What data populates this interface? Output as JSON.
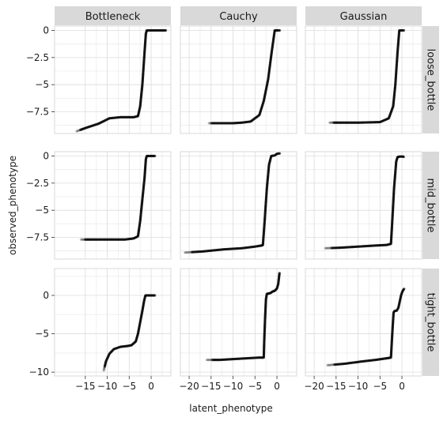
{
  "chart_data": {
    "type": "scatter",
    "title": "",
    "xlabel": "latent_phenotype",
    "ylabel": "observed_phenotype",
    "column_facets": [
      "Bottleneck",
      "Cauchy",
      "Gaussian"
    ],
    "row_facets": [
      "loose_bottle",
      "mid_bottle",
      "tight_bottle"
    ],
    "xlim": [
      -22,
      4.5
    ],
    "x_ticks": [
      -20,
      -15,
      -10,
      -5,
      0
    ],
    "x_tick_labels": [
      "−20",
      "−15",
      "−10",
      "−5",
      "0"
    ],
    "x_ticks_bottleneck": [
      -15,
      -10,
      -5,
      0
    ],
    "x_tick_labels_bottleneck": [
      "−15",
      "−10",
      "−5",
      "0"
    ],
    "y_ticks_top": [
      0,
      -2.5,
      -5,
      -7.5
    ],
    "y_tick_labels_top": [
      "0",
      "−2.5",
      "−5",
      "−7.5"
    ],
    "y_ticks_bottom": [
      0,
      -5,
      -10
    ],
    "y_tick_labels_bottom": [
      "0",
      "−5",
      "−10"
    ],
    "ylim_rows": [
      [
        -9.5,
        0.4
      ],
      [
        -9.5,
        0.4
      ],
      [
        -10.5,
        3.5
      ]
    ],
    "grid": true,
    "point_color": "#000000",
    "panels": [
      {
        "row": "loose_bottle",
        "col": "Bottleneck",
        "points": [
          [
            -17.0,
            -9.3
          ],
          [
            -15.0,
            -9.0
          ],
          [
            -12.0,
            -8.6
          ],
          [
            -9.5,
            -8.1
          ],
          [
            -7.0,
            -8.0
          ],
          [
            -4.0,
            -8.0
          ],
          [
            -3.0,
            -7.9
          ],
          [
            -2.5,
            -7.0
          ],
          [
            -2.0,
            -5.0
          ],
          [
            -1.5,
            -2.0
          ],
          [
            -1.2,
            -0.3
          ],
          [
            -1.0,
            0.0
          ],
          [
            0.0,
            0.0
          ],
          [
            2.0,
            0.0
          ],
          [
            3.5,
            0.0
          ]
        ]
      },
      {
        "row": "loose_bottle",
        "col": "Cauchy",
        "points": [
          [
            -15.5,
            -8.55
          ],
          [
            -14.0,
            -8.55
          ],
          [
            -10.0,
            -8.55
          ],
          [
            -8.0,
            -8.5
          ],
          [
            -6.0,
            -8.4
          ],
          [
            -4.0,
            -7.8
          ],
          [
            -3.0,
            -6.5
          ],
          [
            -2.0,
            -4.5
          ],
          [
            -1.2,
            -2.0
          ],
          [
            -0.5,
            0.0
          ],
          [
            0.0,
            0.0
          ],
          [
            0.8,
            0.0
          ]
        ]
      },
      {
        "row": "loose_bottle",
        "col": "Gaussian",
        "points": [
          [
            -16.5,
            -8.5
          ],
          [
            -14.5,
            -8.5
          ],
          [
            -10.0,
            -8.5
          ],
          [
            -5.0,
            -8.45
          ],
          [
            -3.0,
            -8.1
          ],
          [
            -2.0,
            -7.0
          ],
          [
            -1.5,
            -5.0
          ],
          [
            -1.0,
            -2.0
          ],
          [
            -0.6,
            0.0
          ],
          [
            0.0,
            0.0
          ],
          [
            0.6,
            0.0
          ]
        ]
      },
      {
        "row": "mid_bottle",
        "col": "Bottleneck",
        "points": [
          [
            -16.0,
            -7.7
          ],
          [
            -14.0,
            -7.7
          ],
          [
            -10.0,
            -7.7
          ],
          [
            -6.0,
            -7.7
          ],
          [
            -4.0,
            -7.6
          ],
          [
            -3.0,
            -7.4
          ],
          [
            -2.5,
            -6.0
          ],
          [
            -2.0,
            -4.0
          ],
          [
            -1.5,
            -2.0
          ],
          [
            -1.2,
            -0.3
          ],
          [
            -1.0,
            0.0
          ],
          [
            0.0,
            0.0
          ],
          [
            1.0,
            0.0
          ]
        ]
      },
      {
        "row": "mid_bottle",
        "col": "Cauchy",
        "points": [
          [
            -21.0,
            -8.9
          ],
          [
            -17.0,
            -8.8
          ],
          [
            -12.0,
            -8.6
          ],
          [
            -8.0,
            -8.5
          ],
          [
            -5.0,
            -8.35
          ],
          [
            -3.5,
            -8.25
          ],
          [
            -3.2,
            -8.2
          ],
          [
            -2.8,
            -6.0
          ],
          [
            -2.3,
            -3.0
          ],
          [
            -1.8,
            -0.8
          ],
          [
            -1.3,
            0.0
          ],
          [
            -0.5,
            0.05
          ],
          [
            0.0,
            0.2
          ],
          [
            0.8,
            0.25
          ]
        ]
      },
      {
        "row": "mid_bottle",
        "col": "Gaussian",
        "points": [
          [
            -17.5,
            -8.5
          ],
          [
            -14.0,
            -8.45
          ],
          [
            -10.0,
            -8.35
          ],
          [
            -6.0,
            -8.25
          ],
          [
            -3.5,
            -8.2
          ],
          [
            -2.5,
            -8.1
          ],
          [
            -2.2,
            -6.0
          ],
          [
            -1.8,
            -3.0
          ],
          [
            -1.3,
            -0.5
          ],
          [
            -1.0,
            -0.1
          ],
          [
            -0.5,
            -0.05
          ],
          [
            0.2,
            -0.05
          ],
          [
            0.5,
            -0.1
          ]
        ]
      },
      {
        "row": "tight_bottle",
        "col": "Bottleneck",
        "points": [
          [
            -10.8,
            -9.8
          ],
          [
            -10.3,
            -8.6
          ],
          [
            -9.5,
            -7.6
          ],
          [
            -8.5,
            -7.0
          ],
          [
            -7.0,
            -6.7
          ],
          [
            -5.5,
            -6.6
          ],
          [
            -4.5,
            -6.5
          ],
          [
            -3.5,
            -6.0
          ],
          [
            -3.0,
            -5.0
          ],
          [
            -2.5,
            -3.5
          ],
          [
            -2.0,
            -2.0
          ],
          [
            -1.6,
            -0.7
          ],
          [
            -1.3,
            0.0
          ],
          [
            0.0,
            0.0
          ],
          [
            1.0,
            0.0
          ]
        ]
      },
      {
        "row": "tight_bottle",
        "col": "Cauchy",
        "points": [
          [
            -16.0,
            -8.4
          ],
          [
            -13.0,
            -8.4
          ],
          [
            -10.0,
            -8.3
          ],
          [
            -7.0,
            -8.2
          ],
          [
            -4.0,
            -8.1
          ],
          [
            -3.0,
            -8.1
          ],
          [
            -2.9,
            -6.0
          ],
          [
            -2.7,
            -3.0
          ],
          [
            -2.5,
            -0.5
          ],
          [
            -2.3,
            0.2
          ],
          [
            -1.5,
            0.3
          ],
          [
            -1.0,
            0.5
          ],
          [
            -0.5,
            0.6
          ],
          [
            0.0,
            0.9
          ],
          [
            0.3,
            1.5
          ],
          [
            0.5,
            2.5
          ],
          [
            0.6,
            3.0
          ]
        ]
      },
      {
        "row": "tight_bottle",
        "col": "Gaussian",
        "points": [
          [
            -17.0,
            -9.1
          ],
          [
            -13.0,
            -8.9
          ],
          [
            -9.0,
            -8.6
          ],
          [
            -6.0,
            -8.4
          ],
          [
            -3.5,
            -8.2
          ],
          [
            -2.5,
            -8.1
          ],
          [
            -2.3,
            -6.0
          ],
          [
            -2.1,
            -4.0
          ],
          [
            -1.9,
            -2.2
          ],
          [
            -1.6,
            -2.0
          ],
          [
            -1.2,
            -2.0
          ],
          [
            -0.8,
            -1.6
          ],
          [
            -0.5,
            -0.8
          ],
          [
            -0.2,
            0.0
          ],
          [
            0.1,
            0.5
          ],
          [
            0.4,
            0.8
          ],
          [
            0.6,
            0.9
          ]
        ]
      }
    ]
  }
}
